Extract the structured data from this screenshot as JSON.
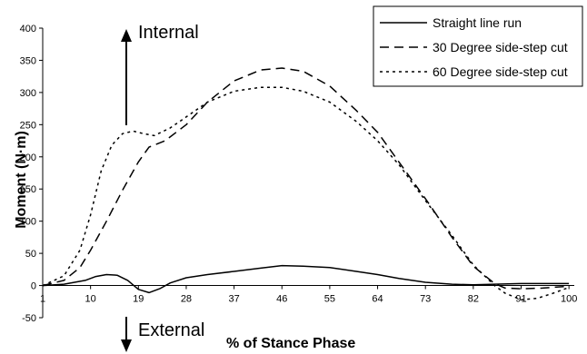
{
  "chart_data": {
    "type": "line",
    "title": "",
    "xlabel": "% of Stance Phase",
    "ylabel": "Moment (N·m)",
    "xlim": [
      1,
      101
    ],
    "ylim": [
      -50,
      400
    ],
    "x_ticks": [
      "1",
      "10",
      "19",
      "28",
      "37",
      "46",
      "55",
      "64",
      "73",
      "82",
      "91",
      "100"
    ],
    "y_ticks": [
      "-50",
      "0",
      "50",
      "100",
      "150",
      "200",
      "250",
      "300",
      "350",
      "400"
    ],
    "grid": false,
    "legend_position": "top-right",
    "annotations": {
      "up": "Internal",
      "down": "External"
    },
    "series": [
      {
        "name": "Straight line run",
        "style": "solid",
        "x": [
          1,
          5,
          9,
          11,
          13,
          15,
          17,
          19,
          21,
          23,
          25,
          28,
          32,
          37,
          42,
          46,
          50,
          55,
          60,
          64,
          68,
          73,
          78,
          82,
          86,
          91,
          95,
          100
        ],
        "y": [
          0,
          2,
          8,
          14,
          17,
          16,
          8,
          -6,
          -11,
          -5,
          4,
          12,
          17,
          22,
          27,
          31,
          30,
          28,
          22,
          17,
          11,
          5,
          2,
          1,
          2,
          3,
          3,
          3
        ]
      },
      {
        "name": "30 Degree side-step cut",
        "style": "dashed",
        "x": [
          1,
          5,
          8,
          10,
          13,
          16,
          19,
          21,
          24,
          28,
          32,
          37,
          42,
          46,
          50,
          55,
          60,
          64,
          68,
          73,
          78,
          82,
          86,
          88,
          91,
          95,
          100
        ],
        "y": [
          0,
          8,
          28,
          55,
          100,
          148,
          192,
          215,
          225,
          250,
          285,
          318,
          335,
          338,
          333,
          310,
          272,
          238,
          192,
          135,
          75,
          30,
          3,
          -4,
          -5,
          -4,
          -1
        ]
      },
      {
        "name": "60 Degree side-step cut",
        "style": "dotted",
        "x": [
          1,
          5,
          8,
          10,
          12,
          14,
          16,
          18,
          20,
          22,
          25,
          28,
          32,
          37,
          42,
          46,
          50,
          55,
          60,
          64,
          68,
          73,
          78,
          82,
          86,
          88,
          91,
          94,
          97,
          100
        ],
        "y": [
          0,
          15,
          55,
          110,
          178,
          218,
          236,
          240,
          236,
          233,
          245,
          262,
          285,
          302,
          308,
          308,
          302,
          285,
          255,
          225,
          188,
          132,
          78,
          32,
          0,
          -12,
          -22,
          -20,
          -12,
          -3
        ]
      }
    ]
  }
}
